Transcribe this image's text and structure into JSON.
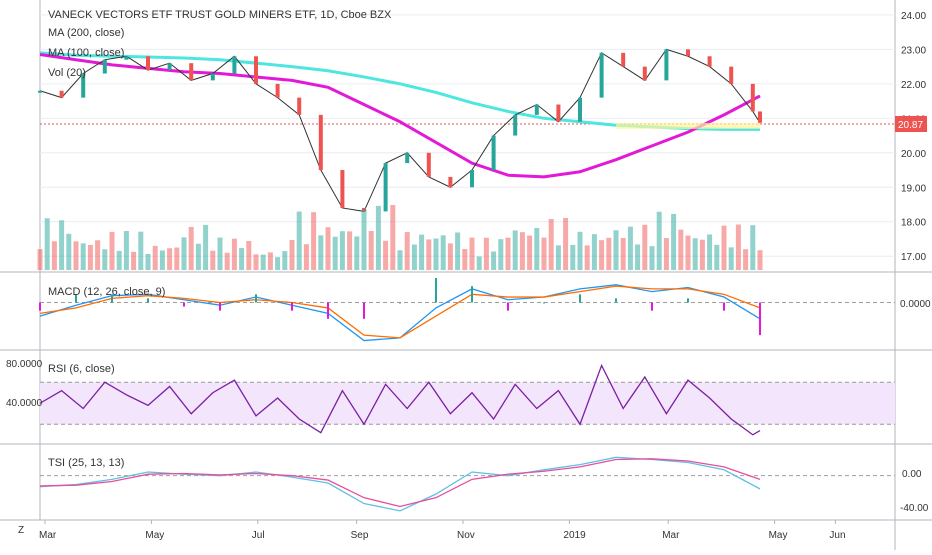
{
  "header": {
    "title": "VANECK VECTORS ETF TRUST GOLD MINERS ETF, 1D, Cboe BZX",
    "ma200": "MA (200, close)",
    "ma100": "MA (100, close)",
    "vol": "Vol (20)"
  },
  "last_price": "20.87",
  "panes": {
    "macd": {
      "label": "MACD (12, 26, close, 9)",
      "tick": "0.0000"
    },
    "rsi": {
      "label": "RSI (6, close)",
      "ticks": [
        "80.0000",
        "40.0000"
      ]
    },
    "tsi": {
      "label": "TSI (25, 13, 13)",
      "ticks": [
        "0.00",
        "-40.00"
      ]
    }
  },
  "xaxis": {
    "corner": "Z",
    "labels": [
      "Mar",
      "May",
      "Jul",
      "Sep",
      "Nov",
      "2019",
      "Mar",
      "May",
      "Jun"
    ]
  },
  "colors": {
    "up": "#26a69a",
    "down": "#ef5350",
    "ma200": "#4de6e0",
    "ma100": "#e21ad7",
    "macd": "#2196f3",
    "signal": "#ff6d00",
    "rsi": "#7b1fa2",
    "rsi_band": "#f3e5fb",
    "tsi": "#5ec0e6",
    "tsi_signal": "#e84e9b",
    "price_line": "#ef5350",
    "grid": "#e9edf2"
  },
  "chart_data": [
    {
      "type": "line",
      "title": "VANECK VECTORS ETF TRUST GOLD MINERS ETF, 1D, Cboe BZX",
      "y_ticks": [
        17.0,
        18.0,
        19.0,
        20.0,
        21.0,
        22.0,
        23.0,
        24.0
      ],
      "ylim": [
        16.6,
        24.2
      ],
      "x_ticks": [
        "Mar",
        "May",
        "Jul",
        "Sep",
        "Nov",
        "2019",
        "Mar",
        "May",
        "Jun"
      ],
      "last_value": 20.87,
      "series": [
        {
          "name": "MA (200, close)",
          "x": [
            0,
            5,
            10,
            15,
            20,
            25,
            30,
            35,
            40,
            45,
            50,
            55,
            60,
            65,
            70,
            75,
            80,
            85,
            90,
            95,
            100
          ],
          "values": [
            22.9,
            22.83,
            22.8,
            22.78,
            22.75,
            22.7,
            22.6,
            22.5,
            22.38,
            22.2,
            22.0,
            21.75,
            21.45,
            21.2,
            21.0,
            20.9,
            20.8,
            20.75,
            20.7,
            20.68,
            20.68
          ]
        },
        {
          "name": "MA (100, close)",
          "x": [
            0,
            5,
            10,
            15,
            20,
            25,
            30,
            35,
            40,
            45,
            50,
            55,
            60,
            65,
            70,
            75,
            80,
            85,
            90,
            95,
            100
          ],
          "values": [
            22.85,
            22.7,
            22.55,
            22.45,
            22.35,
            22.3,
            22.2,
            22.1,
            21.9,
            21.4,
            20.9,
            20.3,
            19.7,
            19.35,
            19.3,
            19.45,
            19.8,
            20.2,
            20.6,
            21.1,
            21.65
          ]
        },
        {
          "name": "Close",
          "x": [
            0,
            3,
            6,
            9,
            12,
            15,
            18,
            21,
            24,
            27,
            30,
            33,
            36,
            39,
            42,
            45,
            48,
            51,
            54,
            57,
            60,
            63,
            66,
            69,
            72,
            75,
            78,
            81,
            84,
            87,
            90,
            93,
            96,
            99,
            100
          ],
          "values": [
            21.8,
            21.6,
            22.3,
            22.7,
            22.8,
            22.4,
            22.6,
            22.1,
            22.3,
            22.8,
            22.0,
            21.6,
            21.1,
            19.5,
            18.4,
            18.3,
            19.7,
            20.0,
            19.3,
            19.0,
            19.5,
            20.5,
            21.1,
            21.4,
            20.9,
            21.6,
            22.9,
            22.5,
            22.1,
            23.0,
            22.8,
            22.5,
            22.0,
            21.2,
            20.87
          ]
        }
      ]
    },
    {
      "type": "bar",
      "title": "Vol (20)",
      "x": [
        0,
        5,
        10,
        15,
        20,
        25,
        30,
        35,
        40,
        45,
        50,
        55,
        60,
        65,
        70,
        75,
        80,
        85,
        90,
        95,
        100
      ],
      "values": [
        0.8,
        0.5,
        0.6,
        0.4,
        0.7,
        0.5,
        0.3,
        0.9,
        0.7,
        1.0,
        0.6,
        0.6,
        0.5,
        0.7,
        0.8,
        0.6,
        0.7,
        0.9,
        0.6,
        0.7,
        0.5
      ]
    },
    {
      "type": "line",
      "title": "MACD (12, 26, close, 9)",
      "y_ticks": [
        0.0
      ],
      "ylim": [
        -1.6,
        0.9
      ],
      "series": [
        {
          "name": "MACD",
          "x": [
            0,
            5,
            10,
            15,
            20,
            25,
            30,
            35,
            40,
            45,
            50,
            55,
            60,
            65,
            70,
            75,
            80,
            85,
            90,
            95,
            100
          ],
          "values": [
            -0.5,
            -0.1,
            0.25,
            0.3,
            0.1,
            -0.1,
            0.2,
            -0.1,
            -0.4,
            -1.4,
            -1.3,
            -0.2,
            0.5,
            0.1,
            0.2,
            0.5,
            0.65,
            0.4,
            0.55,
            0.2,
            -0.6
          ]
        },
        {
          "name": "Signal",
          "x": [
            0,
            5,
            10,
            15,
            20,
            25,
            30,
            35,
            40,
            45,
            50,
            55,
            60,
            65,
            70,
            75,
            80,
            85,
            90,
            95,
            100
          ],
          "values": [
            -0.4,
            -0.2,
            0.15,
            0.25,
            0.15,
            0.0,
            0.1,
            0.0,
            -0.2,
            -1.2,
            -1.3,
            -0.5,
            0.3,
            0.2,
            0.2,
            0.4,
            0.6,
            0.5,
            0.5,
            0.3,
            -0.2
          ]
        }
      ]
    },
    {
      "type": "line",
      "title": "RSI (6, close)",
      "y_ticks": [
        80.0,
        40.0
      ],
      "ylim": [
        15,
        95
      ],
      "series": [
        {
          "name": "RSI",
          "x": [
            0,
            3,
            6,
            9,
            12,
            15,
            18,
            21,
            24,
            27,
            30,
            33,
            36,
            39,
            42,
            45,
            48,
            51,
            54,
            57,
            60,
            63,
            66,
            69,
            72,
            75,
            78,
            81,
            84,
            87,
            90,
            93,
            96,
            99,
            100
          ],
          "values": [
            50,
            62,
            45,
            70,
            58,
            48,
            66,
            40,
            60,
            72,
            38,
            55,
            35,
            22,
            62,
            30,
            68,
            45,
            70,
            40,
            60,
            35,
            68,
            45,
            62,
            30,
            86,
            45,
            75,
            40,
            72,
            55,
            35,
            20,
            24
          ]
        }
      ]
    },
    {
      "type": "line",
      "title": "TSI (25, 13, 13)",
      "y_ticks": [
        0.0,
        -40.0
      ],
      "ylim": [
        -55,
        35
      ],
      "series": [
        {
          "name": "TSI",
          "x": [
            0,
            5,
            10,
            15,
            20,
            25,
            30,
            35,
            40,
            45,
            50,
            55,
            60,
            65,
            70,
            75,
            80,
            85,
            90,
            95,
            100
          ],
          "values": [
            -15,
            -12,
            -5,
            5,
            2,
            0,
            5,
            -2,
            -10,
            -38,
            -48,
            -25,
            5,
            0,
            8,
            15,
            25,
            22,
            18,
            8,
            -18
          ]
        },
        {
          "name": "Signal",
          "x": [
            0,
            5,
            10,
            15,
            20,
            25,
            30,
            35,
            40,
            45,
            50,
            55,
            60,
            65,
            70,
            75,
            80,
            85,
            90,
            95,
            100
          ],
          "values": [
            -14,
            -13,
            -8,
            2,
            3,
            1,
            3,
            0,
            -6,
            -30,
            -42,
            -30,
            -5,
            2,
            6,
            12,
            22,
            23,
            20,
            12,
            -5
          ]
        }
      ]
    }
  ]
}
